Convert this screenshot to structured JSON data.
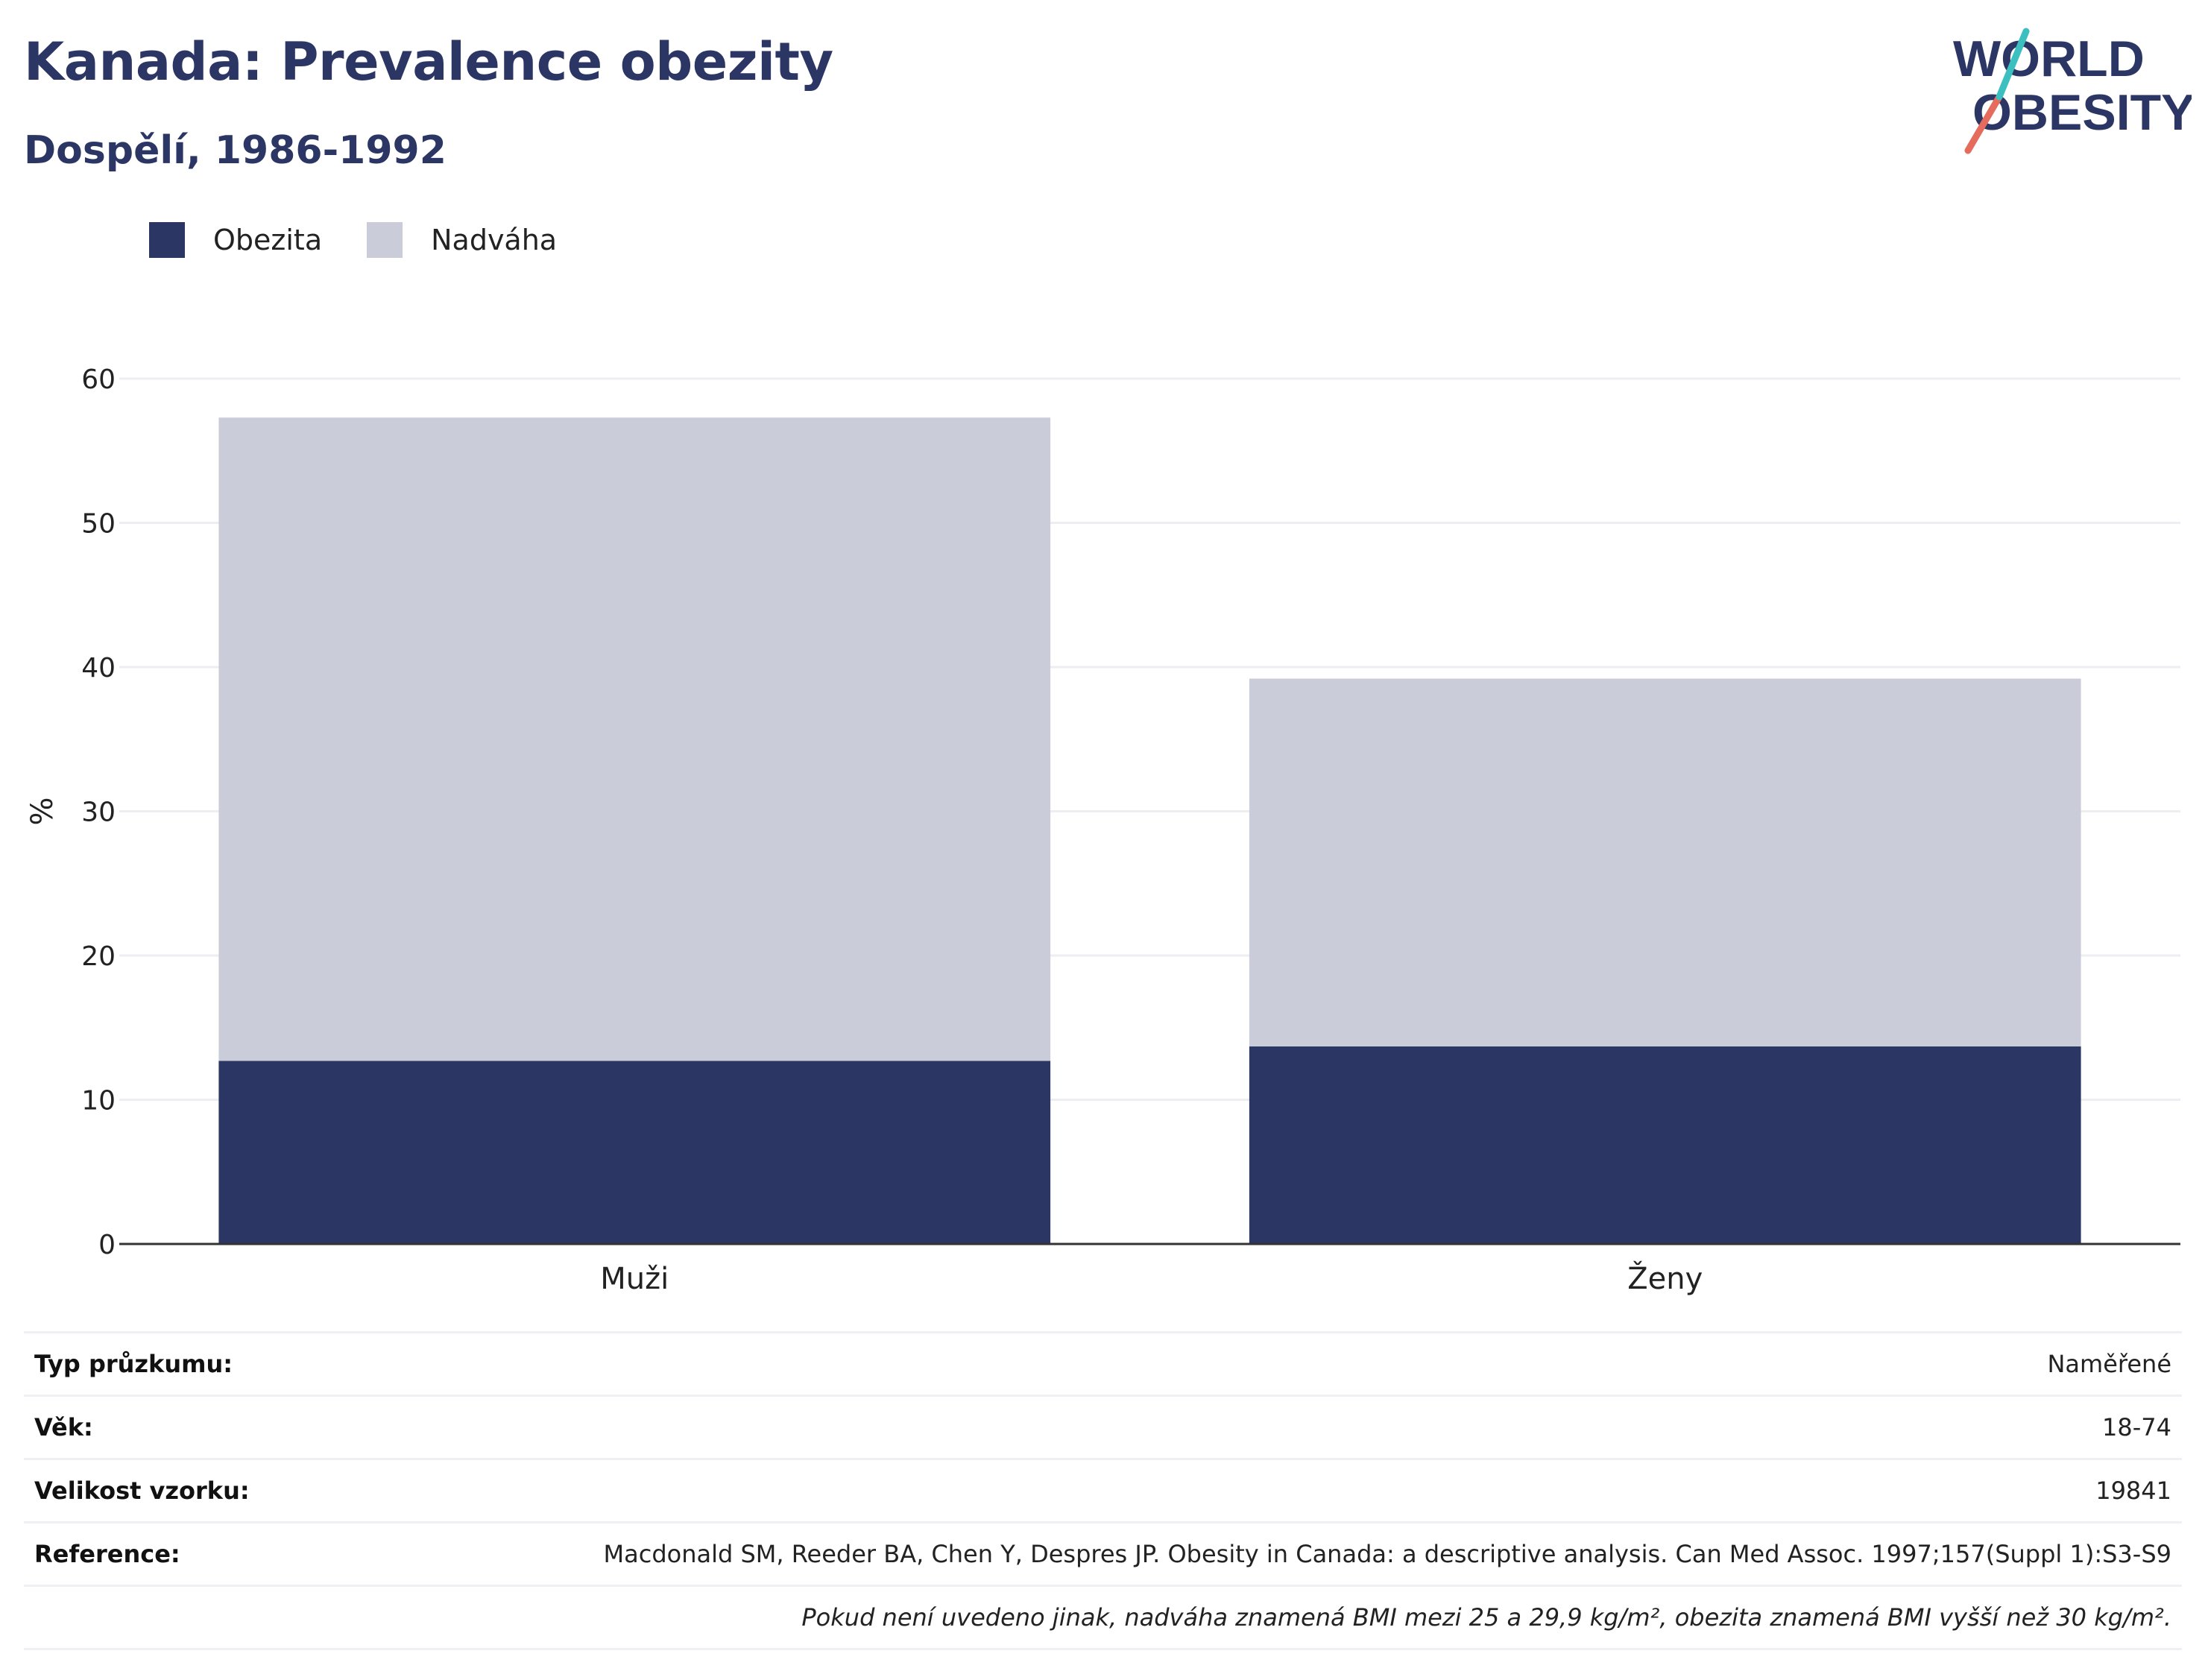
{
  "header": {
    "title": "Kanada: Prevalence obezity",
    "subtitle": "Dospělí, 1986-1992"
  },
  "logo": {
    "line1": "WORLD",
    "line2": "OBESITY"
  },
  "colors": {
    "obezita": "#2b3665",
    "nadvaha": "#cacdd9",
    "title": "#2b3665"
  },
  "chart_data": {
    "type": "bar",
    "stacked": true,
    "categories": [
      "Muži",
      "Ženy"
    ],
    "series": [
      {
        "name": "Obezita",
        "values": [
          12.7,
          13.7
        ]
      },
      {
        "name": "Nadváha",
        "values": [
          44.6,
          25.5
        ]
      }
    ],
    "ylabel": "%",
    "ylim": [
      0,
      60
    ],
    "yticks": [
      0,
      10,
      20,
      30,
      40,
      50,
      60
    ],
    "grid": true,
    "legend": "top-left"
  },
  "info": {
    "rows": [
      {
        "key": "Typ průzkumu:",
        "value": "Naměřené"
      },
      {
        "key": "Věk:",
        "value": "18-74"
      },
      {
        "key": "Velikost vzorku:",
        "value": "19841"
      },
      {
        "key": "Reference:",
        "value": "Macdonald SM, Reeder BA, Chen Y, Despres JP. Obesity in Canada: a descriptive analysis. Can Med Assoc. 1997;157(Suppl 1):S3-S9"
      }
    ],
    "note": "Pokud není uvedeno jinak, nadváha znamená BMI mezi 25 a 29,9 kg/m², obezita znamená BMI vyšší než 30 kg/m²."
  }
}
